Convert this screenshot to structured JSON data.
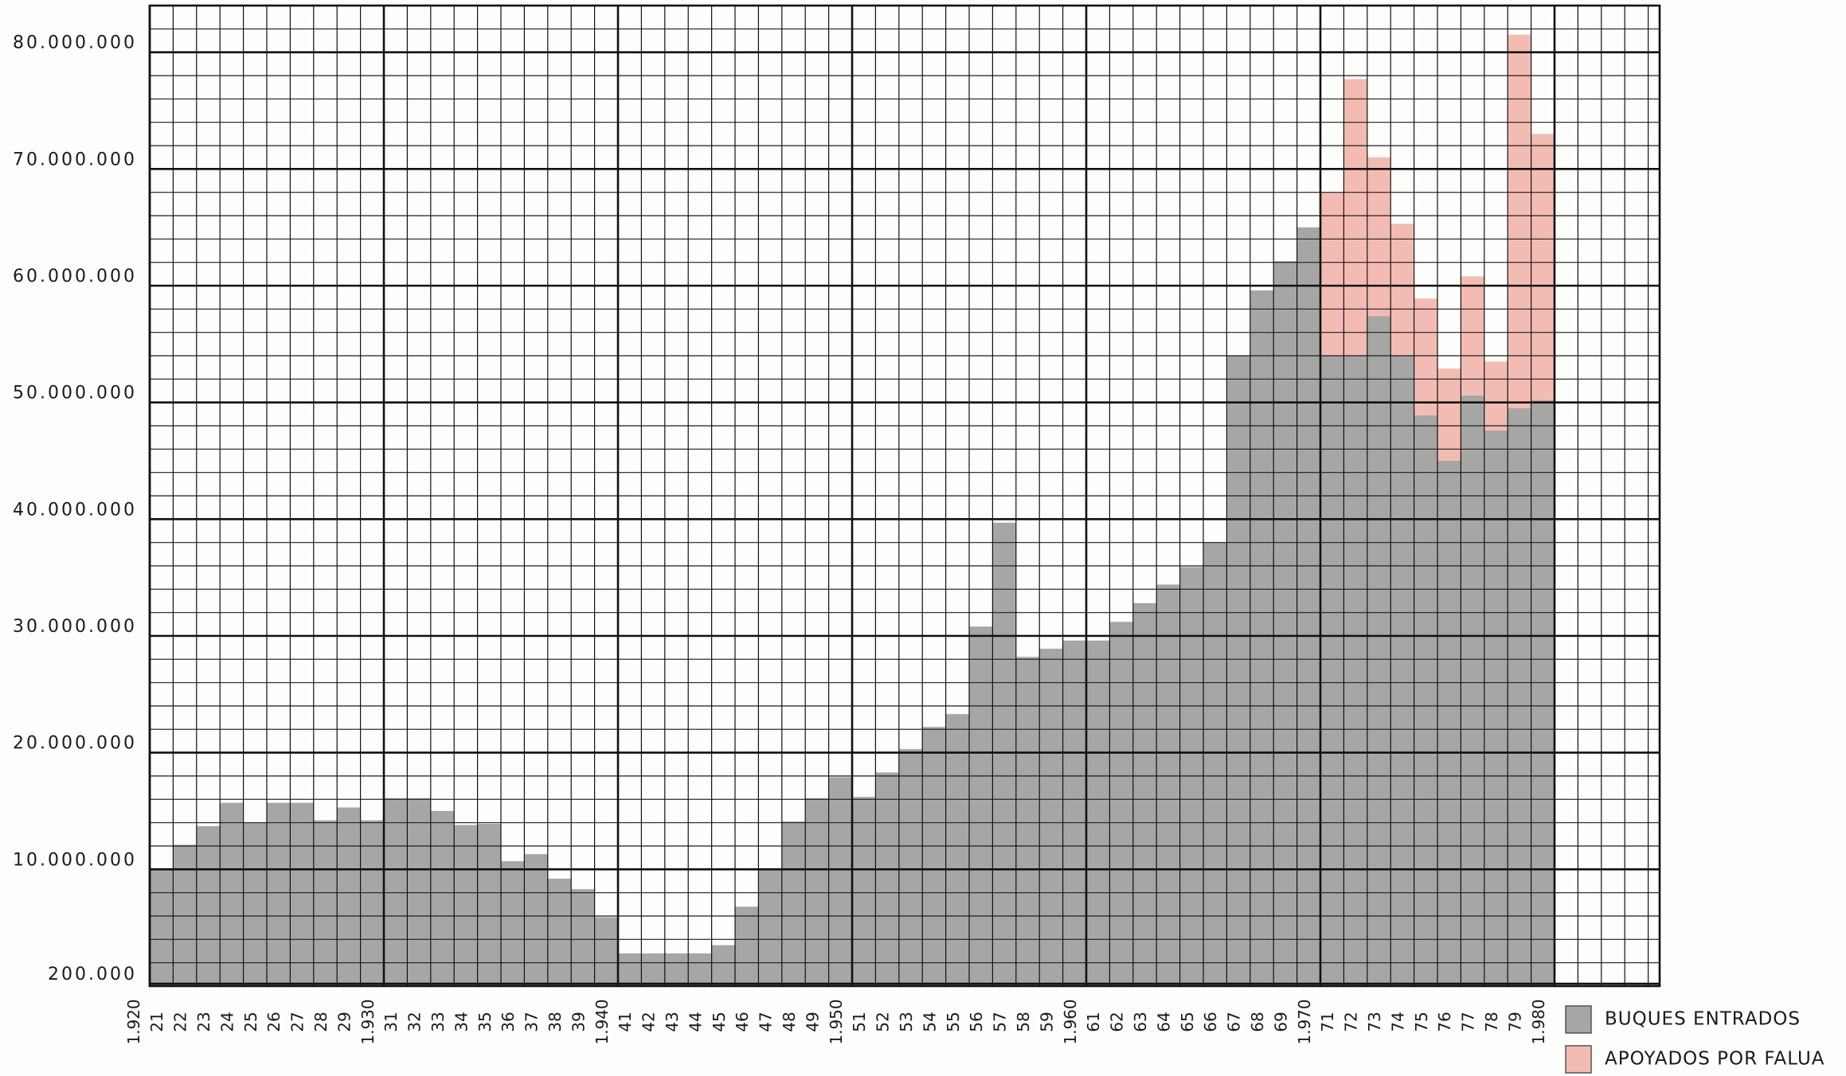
{
  "chart_data": {
    "type": "bar",
    "stacked": true,
    "categories": [
      "1.920",
      "21",
      "22",
      "23",
      "24",
      "25",
      "26",
      "27",
      "28",
      "29",
      "1.930",
      "31",
      "32",
      "33",
      "34",
      "35",
      "36",
      "37",
      "38",
      "39",
      "1.940",
      "41",
      "42",
      "43",
      "44",
      "45",
      "46",
      "47",
      "48",
      "49",
      "1.950",
      "51",
      "52",
      "53",
      "54",
      "55",
      "56",
      "57",
      "58",
      "59",
      "1.960",
      "61",
      "62",
      "63",
      "64",
      "65",
      "66",
      "67",
      "68",
      "69",
      "1.970",
      "71",
      "72",
      "73",
      "74",
      "75",
      "76",
      "77",
      "78",
      "79",
      "1.980"
    ],
    "series": [
      {
        "name": "BUQUES ENTRADOS",
        "color": "#a6a6a4",
        "values": [
          null,
          10100000,
          12100000,
          13700000,
          15700000,
          14000000,
          15700000,
          15700000,
          14200000,
          15300000,
          14200000,
          16100000,
          16100000,
          15000000,
          13800000,
          13900000,
          10700000,
          11300000,
          9200000,
          8300000,
          5900000,
          2800000,
          2800000,
          2800000,
          2800000,
          3500000,
          6800000,
          10000000,
          14100000,
          16100000,
          17900000,
          16200000,
          18300000,
          20300000,
          22200000,
          23300000,
          30800000,
          39700000,
          28200000,
          28900000,
          29600000,
          29600000,
          31200000,
          32800000,
          34400000,
          35900000,
          38000000,
          54000000,
          59600000,
          62100000,
          65000000,
          54000000,
          54000000,
          57400000,
          54000000,
          48900000,
          45000000,
          50600000,
          47600000,
          49500000,
          50200000
        ]
      },
      {
        "name": "APOYADOS POR FALUA",
        "color": "#f3bcb3",
        "values": [
          null,
          null,
          null,
          null,
          null,
          null,
          null,
          null,
          null,
          null,
          null,
          null,
          null,
          null,
          null,
          null,
          null,
          null,
          null,
          null,
          null,
          null,
          null,
          null,
          null,
          null,
          null,
          null,
          null,
          null,
          null,
          null,
          null,
          null,
          null,
          null,
          null,
          null,
          null,
          null,
          null,
          null,
          null,
          null,
          null,
          null,
          null,
          null,
          null,
          null,
          null,
          14000000,
          23700000,
          13600000,
          11300000,
          10000000,
          7900000,
          10200000,
          5900000,
          32000000,
          22800000
        ]
      }
    ],
    "ylim": [
      0,
      84000000
    ],
    "yticks": [
      {
        "value": 200000,
        "label": "200.000"
      },
      {
        "value": 10000000,
        "label": "10.000.000"
      },
      {
        "value": 20000000,
        "label": "20.000.000"
      },
      {
        "value": 30000000,
        "label": "30.000.000"
      },
      {
        "value": 40000000,
        "label": "40.000.000"
      },
      {
        "value": 50000000,
        "label": "50.000.000"
      },
      {
        "value": 60000000,
        "label": "60.000.000"
      },
      {
        "value": 70000000,
        "label": "70.000.000"
      },
      {
        "value": 80000000,
        "label": "80.000.000"
      }
    ],
    "grid": true,
    "legend": "bottom-right"
  }
}
